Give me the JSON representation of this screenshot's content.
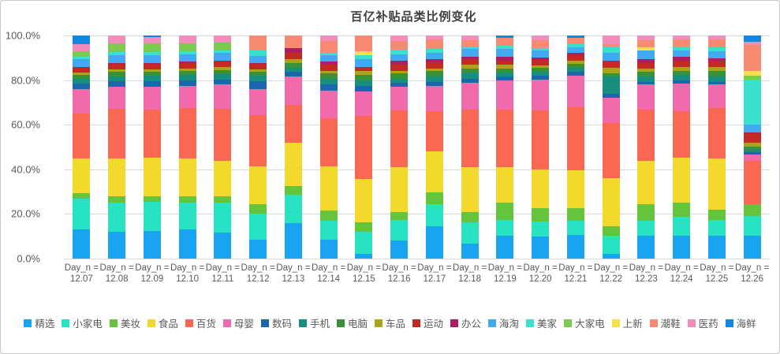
{
  "window": {
    "background": "#ffffff",
    "border_color": "#c9c9c9"
  },
  "chart": {
    "title": "百亿补贴品类比例变化",
    "title_color": "#404040",
    "axis_text_color": "#595959",
    "gridline_color": "#d9d9d9",
    "x_tick_prefix": "Day_n =",
    "y_ticks_top_to_bottom": [
      "100.0%",
      "80.0%",
      "60.0%",
      "40.0%",
      "20.0%",
      "0.0%"
    ]
  },
  "chart_data": {
    "type": "bar",
    "stacked": true,
    "percent_stacked": true,
    "title": "百亿补贴品类比例变化",
    "xlabel": "",
    "ylabel": "",
    "ylim": [
      0,
      100
    ],
    "y_tick_labels": [
      "0.0%",
      "20.0%",
      "40.0%",
      "60.0%",
      "80.0%",
      "100.0%"
    ],
    "grid": true,
    "legend_position": "bottom",
    "x_tick_prefix": "Day_n =",
    "categories": [
      "12.07",
      "12.08",
      "12.09",
      "12.10",
      "12.11",
      "12.12",
      "12.13",
      "12.14",
      "12.15",
      "12.16",
      "12.17",
      "12.18",
      "12.19",
      "12.20",
      "12.21",
      "12.22",
      "12.23",
      "12.24",
      "12.25",
      "12.26"
    ],
    "series": [
      {
        "name": "精选",
        "color": "#18a4f0",
        "values": [
          13,
          12,
          12.5,
          13,
          11.5,
          8.5,
          16,
          8.6,
          2.1,
          8,
          14.5,
          6.8,
          10.4,
          10,
          10.5,
          2.1,
          10.4,
          10.4,
          10.4,
          10.4
        ]
      },
      {
        "name": "小家电",
        "color": "#27e3c3",
        "values": [
          14,
          13,
          13,
          12,
          13.5,
          11.5,
          12.5,
          8.2,
          10,
          9.4,
          10,
          9.4,
          7,
          6.5,
          6.5,
          8.2,
          6.5,
          8.2,
          7,
          8.8
        ]
      },
      {
        "name": "美妆",
        "color": "#64c43c",
        "values": [
          2.5,
          3,
          2.5,
          3,
          3,
          4.5,
          4,
          4.7,
          4.1,
          3.5,
          5.3,
          4.7,
          7.6,
          6,
          5.5,
          4.1,
          7.6,
          6.5,
          4.7,
          5.3
        ]
      },
      {
        "name": "食品",
        "color": "#f2d92c",
        "values": [
          15.5,
          17,
          17.5,
          17,
          16,
          17,
          19.5,
          20,
          19.4,
          20,
          18.2,
          20,
          15.9,
          17.6,
          17,
          21.8,
          19.4,
          20,
          23,
          0
        ]
      },
      {
        "name": "百货",
        "color": "#fa6752",
        "values": [
          20,
          22,
          21.5,
          22.5,
          23,
          23,
          17,
          21.4,
          28.3,
          25.4,
          18.2,
          25.9,
          25.9,
          26.5,
          28.1,
          24.7,
          23,
          21.1,
          22.4,
          19.4
        ]
      },
      {
        "name": "母婴",
        "color": "#f16bac",
        "values": [
          11,
          10,
          10.5,
          10,
          11,
          11.5,
          12.5,
          12.4,
          11.2,
          10.6,
          11.2,
          11.8,
          13,
          13.5,
          14,
          11.2,
          11.2,
          12.4,
          10.6,
          2.9
        ]
      },
      {
        "name": "数码",
        "color": "#1b67ae",
        "values": [
          2.5,
          2.4,
          2.4,
          2.4,
          2.4,
          3.5,
          2.4,
          2.9,
          2.4,
          1.8,
          1.8,
          1.8,
          1.8,
          1.8,
          1.8,
          1.8,
          1.2,
          1.2,
          1.2,
          1.2
        ]
      },
      {
        "name": "手机",
        "color": "#188f7e",
        "values": [
          2,
          2.4,
          2.4,
          2.4,
          2.4,
          2.4,
          1.8,
          2.4,
          2.4,
          1.8,
          2.4,
          2.9,
          1.8,
          1.8,
          1.8,
          8,
          2.4,
          2.4,
          2.4,
          1.2
        ]
      },
      {
        "name": "电脑",
        "color": "#389238",
        "values": [
          2,
          1.8,
          1.8,
          1.8,
          1.8,
          2,
          1.8,
          2.4,
          2.4,
          2.4,
          2.4,
          1.8,
          1.8,
          1.8,
          1.8,
          1.5,
          2.4,
          1.8,
          2.4,
          1.2
        ]
      },
      {
        "name": "车品",
        "color": "#aba318",
        "values": [
          1,
          1.2,
          1.2,
          1.2,
          1.2,
          1,
          1.8,
          1.2,
          1.8,
          1.2,
          1.2,
          1.8,
          1.8,
          1.2,
          1.2,
          2.4,
          1.2,
          1.8,
          1.8,
          1.8
        ]
      },
      {
        "name": "运动",
        "color": "#c32a22",
        "values": [
          2,
          2.4,
          2.4,
          2.4,
          2.4,
          2.4,
          2.9,
          2.9,
          1.8,
          2.9,
          2.9,
          2.3,
          1.8,
          2.4,
          2.4,
          3,
          2.4,
          2.9,
          2.9,
          4.1
        ]
      },
      {
        "name": "办公",
        "color": "#b01e62",
        "values": [
          0.5,
          0.6,
          0.5,
          0.5,
          0.5,
          0.5,
          2.3,
          1.2,
          0,
          1.8,
          1.2,
          1.2,
          1.8,
          1.2,
          1.2,
          0,
          1.8,
          1.8,
          1.2,
          0.6
        ]
      },
      {
        "name": "海淘",
        "color": "#42a9f2",
        "values": [
          3.5,
          3.5,
          3.5,
          3.5,
          3.5,
          3,
          0,
          2.9,
          3.5,
          2.9,
          2.9,
          3.5,
          3.5,
          3,
          2.5,
          3.5,
          4.1,
          2.9,
          2.9,
          3.5
        ]
      },
      {
        "name": "美家",
        "color": "#38e0ce",
        "values": [
          1,
          1.2,
          1.3,
          1.3,
          1.3,
          2.4,
          0,
          1.2,
          1.8,
          1.8,
          1.8,
          1.2,
          1.2,
          1.2,
          1.2,
          3,
          0,
          1.2,
          1.8,
          20
        ]
      },
      {
        "name": "大家电",
        "color": "#7ccb50",
        "values": [
          2.5,
          4,
          4,
          3.5,
          3.5,
          0,
          0,
          0,
          0,
          0,
          0,
          0,
          0,
          0,
          0,
          0,
          0,
          0,
          0,
          2
        ]
      },
      {
        "name": "上新",
        "color": "#f5e04c",
        "values": [
          0,
          0,
          0,
          0,
          0,
          0,
          0,
          0,
          1.8,
          0,
          0,
          0,
          0,
          0,
          0,
          0,
          1.2,
          0,
          0,
          2.1
        ]
      },
      {
        "name": "潮鞋",
        "color": "#f98a72",
        "values": [
          0,
          0,
          0,
          0,
          0,
          6.8,
          5.5,
          5.2,
          7,
          4.1,
          4.1,
          2.9,
          3.5,
          3.5,
          3,
          1.2,
          3.5,
          3.5,
          3.5,
          11.8
        ]
      },
      {
        "name": "医药",
        "color": "#f28cba",
        "values": [
          3,
          3.5,
          3,
          3.5,
          3,
          0,
          0,
          2.4,
          0,
          2.4,
          1.9,
          1.9,
          0,
          2,
          0,
          3.7,
          1.9,
          1.9,
          1.9,
          1.2
        ]
      },
      {
        "name": "海鲜",
        "color": "#1386e0",
        "values": [
          4,
          0,
          0.5,
          0,
          0,
          0,
          0,
          0,
          0,
          0,
          0,
          0,
          1.2,
          0,
          1,
          0,
          0,
          0,
          0,
          2.9
        ]
      }
    ]
  }
}
